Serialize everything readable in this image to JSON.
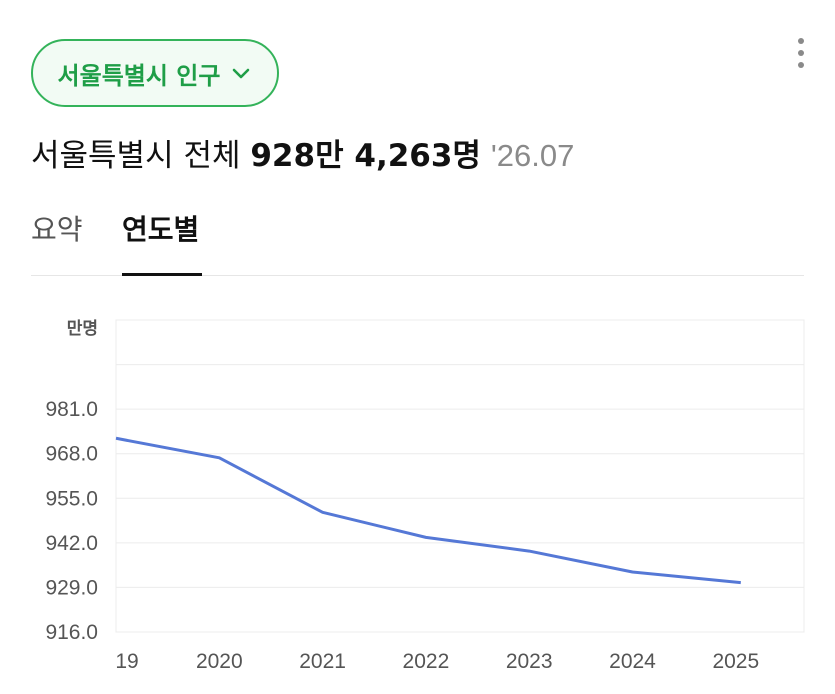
{
  "region_selector": {
    "label": "서울특별시 인구",
    "icon": "chevron-down-icon"
  },
  "more_menu": {
    "icon": "more-vertical-icon"
  },
  "headline": {
    "region": "서울특별시 전체",
    "population": "928만 4,263명",
    "date": "'26.07"
  },
  "tabs": [
    {
      "label": "요약",
      "active": false
    },
    {
      "label": "연도별",
      "active": true
    }
  ],
  "colors": {
    "accent": "#34b35a",
    "line": "#5578d6",
    "grid": "#ececec"
  },
  "chart_data": {
    "type": "line",
    "title": "",
    "ylabel": "만명",
    "xlabel": "",
    "x": [
      "19",
      "2020",
      "2021",
      "2022",
      "2023",
      "2024",
      "2025"
    ],
    "series": [
      {
        "values": [
          972.5,
          966.8,
          950.9,
          943.6,
          939.6,
          933.5,
          930.4
        ]
      }
    ],
    "ylim": [
      916.0,
      1007.0
    ],
    "yticks": [
      "916.0",
      "929.0",
      "942.0",
      "955.0",
      "968.0",
      "981.0"
    ],
    "grid": true,
    "legend": "none"
  }
}
